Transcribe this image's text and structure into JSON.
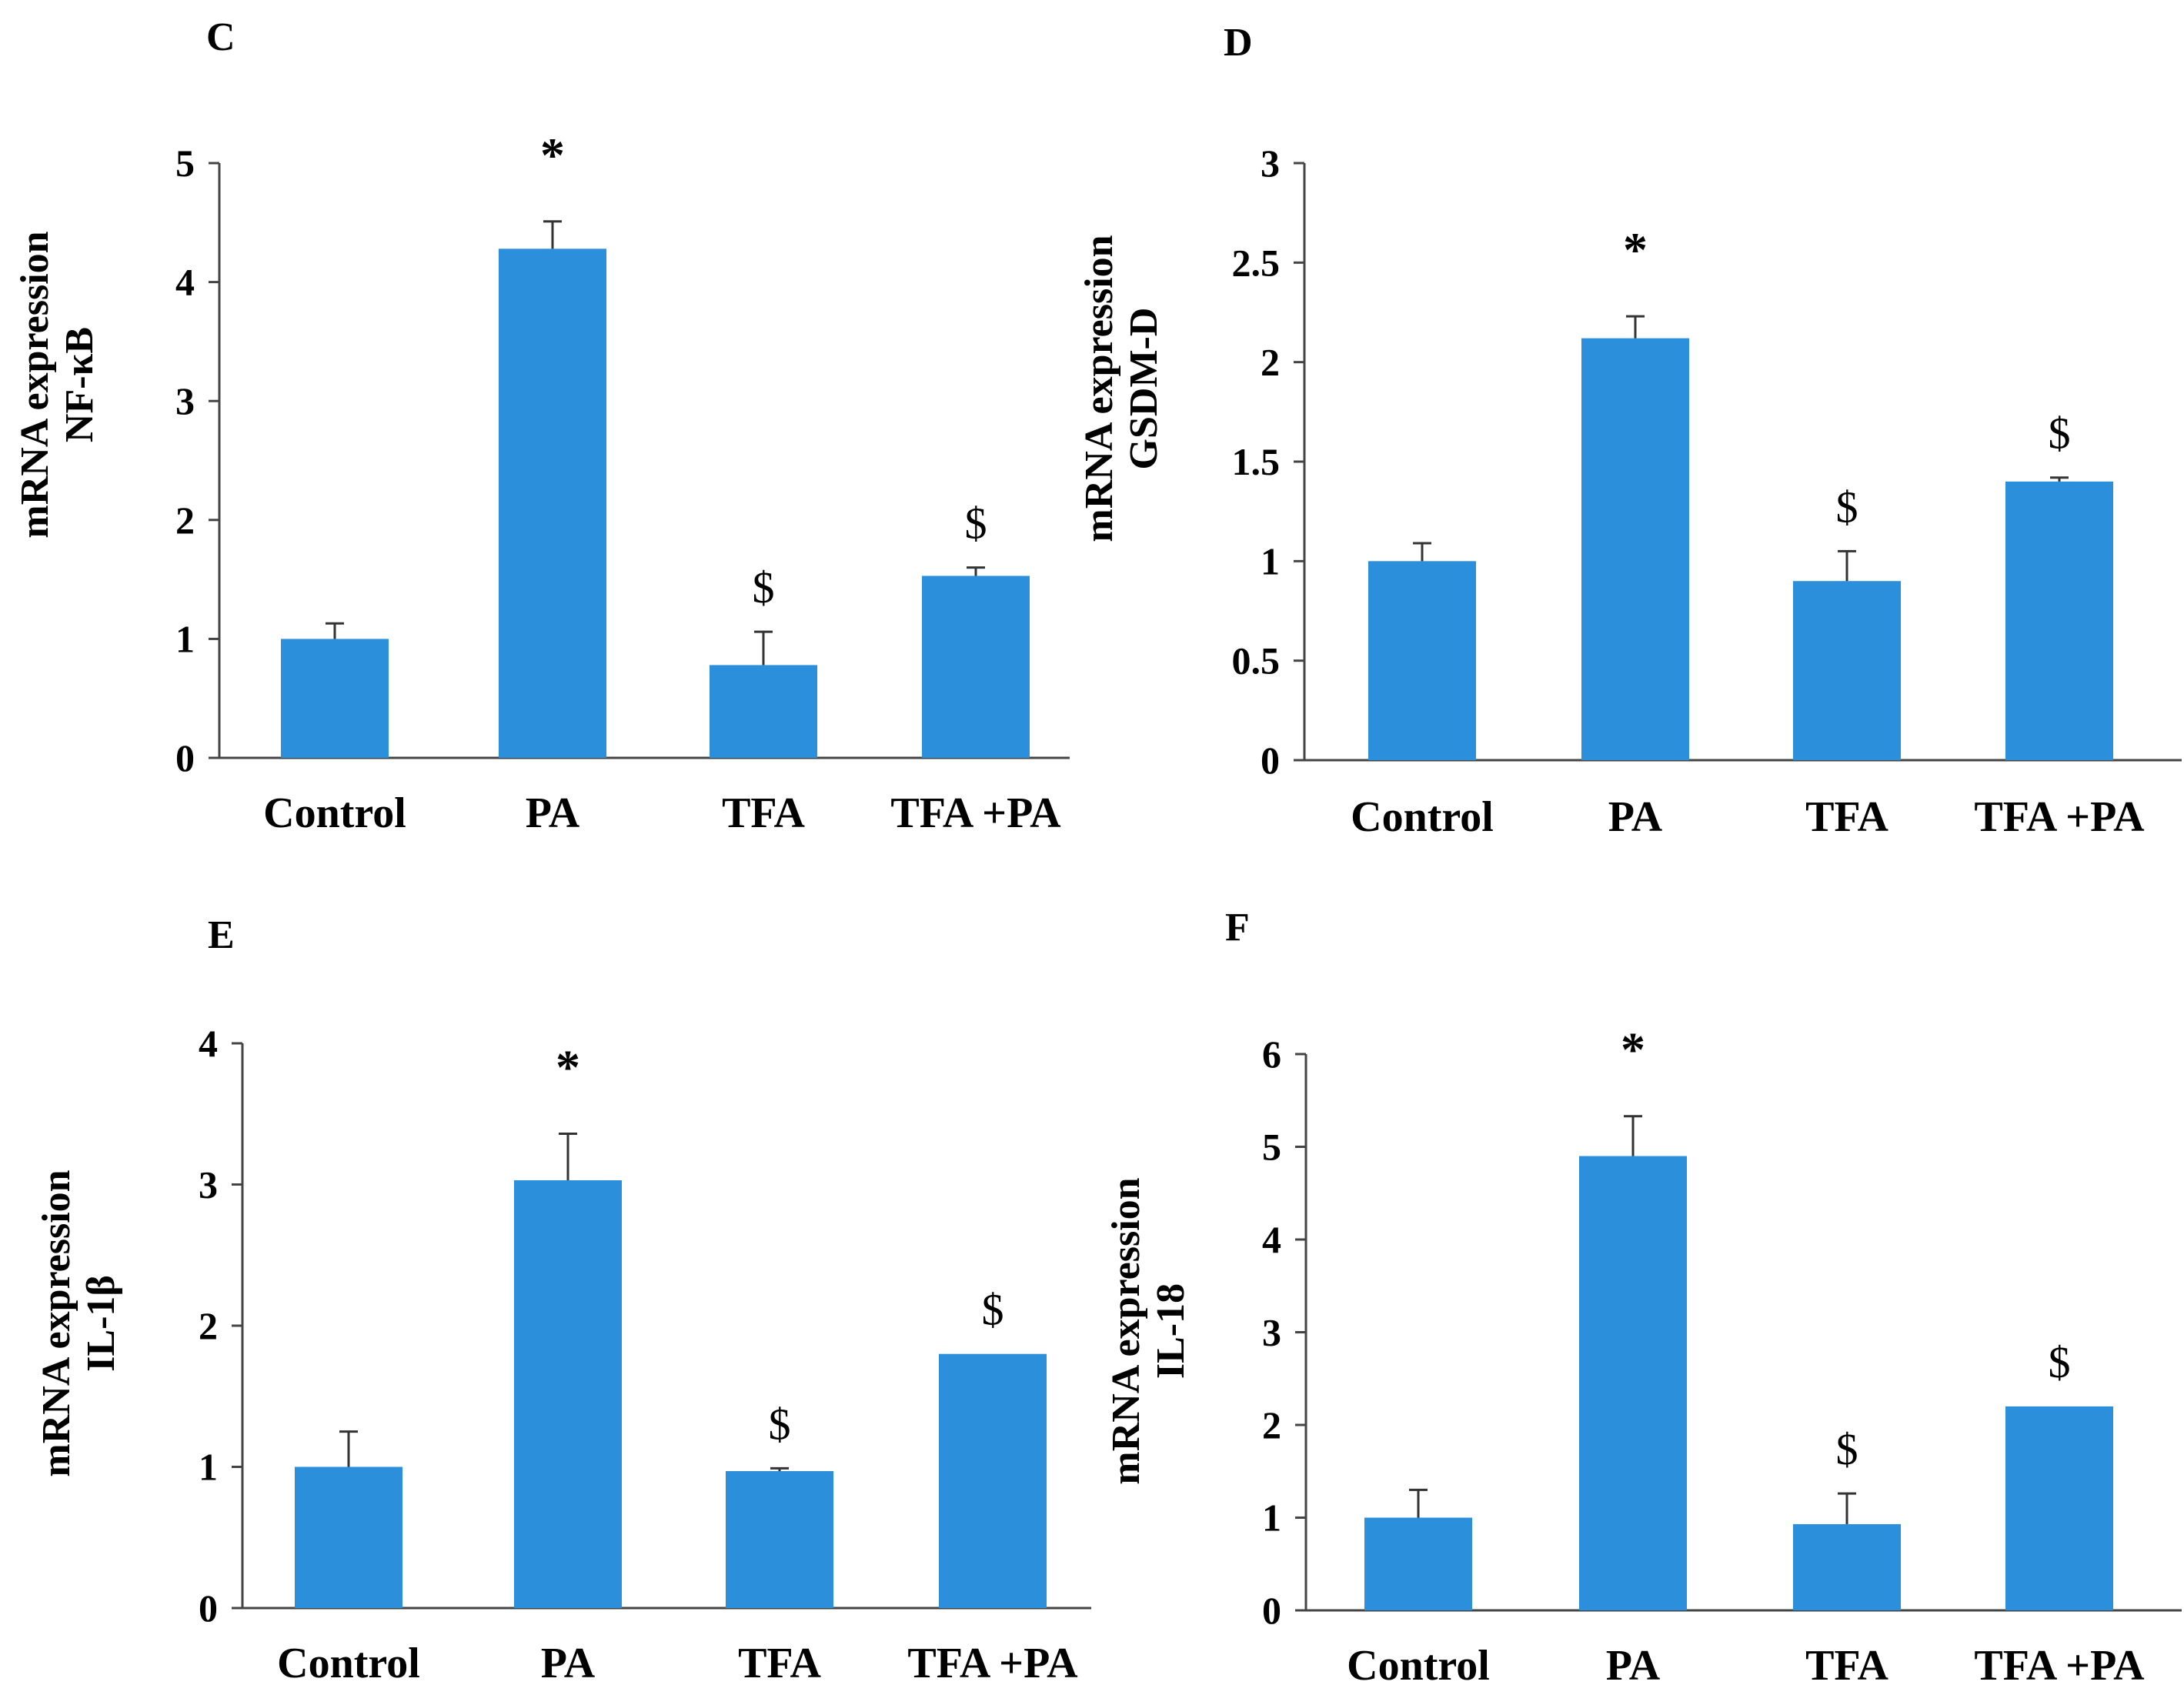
{
  "chart_data": [
    {
      "type": "bar",
      "panel": "C",
      "categories": [
        "Control",
        "PA",
        "TFA",
        "TFA +PA"
      ],
      "values": [
        1.0,
        4.28,
        0.78,
        1.53
      ],
      "errors": [
        0.13,
        0.23,
        0.28,
        0.07
      ],
      "annotations": [
        "",
        "*",
        "$",
        "$"
      ],
      "ylabel_line1": "mRNA expression",
      "ylabel_line2": "NF-κB",
      "ylim": [
        0,
        5
      ],
      "yticks": [
        0,
        1,
        2,
        3,
        4,
        5
      ],
      "ytick_labels": [
        "0",
        "1",
        "2",
        "3",
        "4",
        "5"
      ],
      "color": "#2b8fdb",
      "grid": false
    },
    {
      "type": "bar",
      "panel": "D",
      "categories": [
        "Control",
        "PA",
        "TFA",
        "TFA +PA"
      ],
      "values": [
        1.0,
        2.12,
        0.9,
        1.4
      ],
      "errors": [
        0.09,
        0.11,
        0.15,
        0.02
      ],
      "annotations": [
        "",
        "*",
        "$",
        "$"
      ],
      "ylabel_line1": "mRNA expression",
      "ylabel_line2": "GSDM-D",
      "ylim": [
        0,
        3
      ],
      "yticks": [
        0,
        0.5,
        1,
        1.5,
        2,
        2.5,
        3
      ],
      "ytick_labels": [
        "0",
        "0.5",
        "1",
        "1.5",
        "2",
        "2.5",
        "3"
      ],
      "color": "#2b8fdb",
      "grid": false
    },
    {
      "type": "bar",
      "panel": "E",
      "categories": [
        "Control",
        "PA",
        "TFA",
        "TFA +PA"
      ],
      "values": [
        1.0,
        3.03,
        0.97,
        1.8
      ],
      "errors": [
        0.25,
        0.33,
        0.02,
        0.0
      ],
      "annotations": [
        "",
        "*",
        "$",
        "$"
      ],
      "ylabel_line1": "mRNA expression",
      "ylabel_line2": "IL-1β",
      "ylim": [
        0,
        4
      ],
      "yticks": [
        0,
        1,
        2,
        3,
        4
      ],
      "ytick_labels": [
        "0",
        "1",
        "2",
        "3",
        "4"
      ],
      "color": "#2b8fdb",
      "grid": false
    },
    {
      "type": "bar",
      "panel": "F",
      "categories": [
        "Control",
        "PA",
        "TFA",
        "TFA +PA"
      ],
      "values": [
        1.0,
        4.9,
        0.93,
        2.2
      ],
      "errors": [
        0.3,
        0.43,
        0.33,
        0.0
      ],
      "annotations": [
        "",
        "*",
        "$",
        "$"
      ],
      "ylabel_line1": "mRNA expression",
      "ylabel_line2": "IL-18",
      "ylim": [
        0,
        6
      ],
      "yticks": [
        0,
        1,
        2,
        3,
        4,
        5,
        6
      ],
      "ytick_labels": [
        "0",
        "1",
        "2",
        "3",
        "4",
        "5",
        "6"
      ],
      "color": "#2b8fdb",
      "grid": false
    }
  ]
}
